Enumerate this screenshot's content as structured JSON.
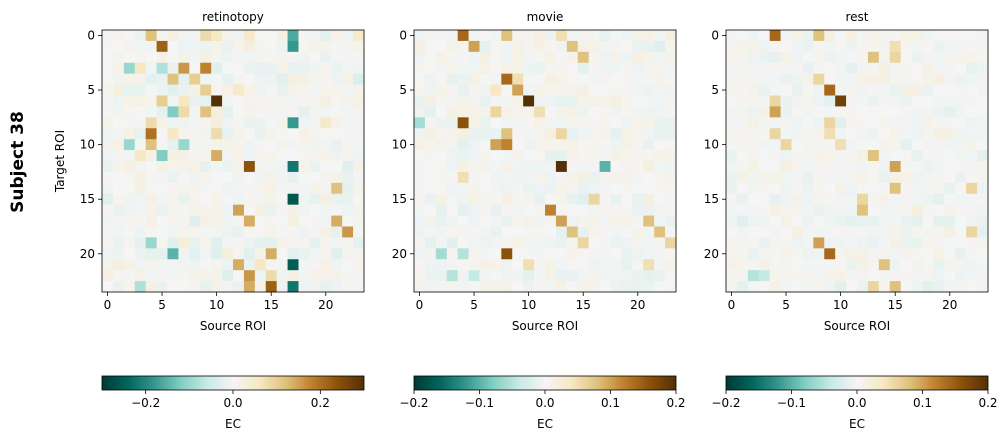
{
  "figure": {
    "row_label": "Subject 38"
  },
  "chart_data": [
    {
      "type": "heatmap",
      "title": "retinotopy",
      "xlabel": "Source ROI",
      "ylabel": "Target ROI",
      "size": 24,
      "xticks": [
        0,
        5,
        10,
        15,
        20
      ],
      "yticks": [
        0,
        5,
        10,
        15,
        20
      ],
      "colormap": "BrBG_r",
      "colorbar": {
        "label": "EC",
        "range": [
          -0.3,
          0.3
        ],
        "ticks": [
          -0.2,
          0.0,
          0.2
        ],
        "tick_labels": [
          "−0.2",
          "0.0",
          "0.2"
        ]
      },
      "grid": false,
      "seed": 38,
      "noise_scale": 0.075,
      "notable_cells": [
        [
          0,
          4,
          0.12
        ],
        [
          0,
          9,
          0.08
        ],
        [
          0,
          10,
          0.06
        ],
        [
          0,
          13,
          0.05
        ],
        [
          0,
          17,
          -0.16
        ],
        [
          0,
          23,
          0.05
        ],
        [
          1,
          5,
          0.22
        ],
        [
          1,
          17,
          -0.18
        ],
        [
          3,
          2,
          -0.1
        ],
        [
          3,
          3,
          0.06
        ],
        [
          3,
          5,
          -0.08
        ],
        [
          3,
          7,
          0.16
        ],
        [
          3,
          9,
          0.18
        ],
        [
          4,
          6,
          0.12
        ],
        [
          4,
          8,
          0.1
        ],
        [
          5,
          9,
          0.1
        ],
        [
          5,
          12,
          0.05
        ],
        [
          6,
          5,
          0.1
        ],
        [
          6,
          7,
          0.06
        ],
        [
          6,
          10,
          0.3
        ],
        [
          7,
          6,
          -0.12
        ],
        [
          7,
          7,
          0.08
        ],
        [
          7,
          9,
          0.12
        ],
        [
          8,
          4,
          0.08
        ],
        [
          8,
          17,
          -0.18
        ],
        [
          8,
          20,
          0.05
        ],
        [
          9,
          4,
          0.2
        ],
        [
          9,
          6,
          0.06
        ],
        [
          9,
          10,
          0.08
        ],
        [
          10,
          2,
          -0.1
        ],
        [
          10,
          4,
          0.12
        ],
        [
          10,
          7,
          -0.1
        ],
        [
          11,
          3,
          0.06
        ],
        [
          11,
          5,
          -0.12
        ],
        [
          11,
          10,
          0.14
        ],
        [
          12,
          13,
          0.24
        ],
        [
          12,
          17,
          -0.22
        ],
        [
          14,
          21,
          0.12
        ],
        [
          15,
          17,
          -0.26
        ],
        [
          16,
          12,
          0.15
        ],
        [
          17,
          13,
          0.14
        ],
        [
          17,
          21,
          0.14
        ],
        [
          18,
          22,
          0.16
        ],
        [
          19,
          4,
          -0.1
        ],
        [
          20,
          6,
          -0.15
        ],
        [
          20,
          15,
          0.14
        ],
        [
          21,
          12,
          0.14
        ],
        [
          21,
          14,
          0.06
        ],
        [
          21,
          17,
          -0.25
        ],
        [
          22,
          13,
          0.16
        ],
        [
          22,
          15,
          0.08
        ],
        [
          23,
          13,
          0.14
        ],
        [
          23,
          15,
          0.22
        ],
        [
          23,
          17,
          -0.22
        ],
        [
          23,
          3,
          -0.08
        ]
      ]
    },
    {
      "type": "heatmap",
      "title": "movie",
      "xlabel": "Source ROI",
      "ylabel": "",
      "size": 24,
      "xticks": [
        0,
        5,
        10,
        15,
        20
      ],
      "yticks": [
        0,
        5,
        10,
        15,
        20
      ],
      "colormap": "BrBG_r",
      "colorbar": {
        "label": "EC",
        "range": [
          -0.2,
          0.2
        ],
        "ticks": [
          -0.2,
          -0.1,
          0.0,
          0.1,
          0.2
        ],
        "tick_labels": [
          "−0.2",
          "−0.1",
          "0.0",
          "0.1",
          "0.2"
        ]
      },
      "grid": false,
      "seed": 7,
      "noise_scale": 0.045,
      "notable_cells": [
        [
          0,
          4,
          0.14
        ],
        [
          0,
          8,
          0.08
        ],
        [
          0,
          13,
          0.05
        ],
        [
          1,
          5,
          0.1
        ],
        [
          1,
          14,
          0.08
        ],
        [
          2,
          15,
          0.08
        ],
        [
          4,
          8,
          0.14
        ],
        [
          4,
          9,
          0.05
        ],
        [
          5,
          9,
          0.1
        ],
        [
          5,
          7,
          0.04
        ],
        [
          6,
          10,
          0.2
        ],
        [
          7,
          7,
          0.06
        ],
        [
          7,
          11,
          0.05
        ],
        [
          8,
          4,
          0.16
        ],
        [
          8,
          0,
          -0.06
        ],
        [
          9,
          8,
          0.08
        ],
        [
          9,
          13,
          0.06
        ],
        [
          10,
          7,
          0.1
        ],
        [
          10,
          8,
          0.12
        ],
        [
          12,
          13,
          0.2
        ],
        [
          12,
          17,
          -0.1
        ],
        [
          13,
          4,
          0.05
        ],
        [
          15,
          16,
          0.06
        ],
        [
          16,
          12,
          0.12
        ],
        [
          17,
          13,
          0.1
        ],
        [
          17,
          21,
          0.08
        ],
        [
          18,
          14,
          0.08
        ],
        [
          18,
          22,
          0.08
        ],
        [
          19,
          15,
          0.06
        ],
        [
          19,
          23,
          0.06
        ],
        [
          20,
          8,
          0.16
        ],
        [
          20,
          2,
          -0.06
        ],
        [
          20,
          4,
          -0.05
        ],
        [
          21,
          10,
          0.05
        ],
        [
          21,
          21,
          0.05
        ],
        [
          22,
          3,
          -0.05
        ],
        [
          22,
          5,
          -0.04
        ]
      ]
    },
    {
      "type": "heatmap",
      "title": "rest",
      "xlabel": "Source ROI",
      "ylabel": "",
      "size": 24,
      "xticks": [
        0,
        5,
        10,
        15,
        20
      ],
      "yticks": [
        0,
        5,
        10,
        15,
        20
      ],
      "colormap": "BrBG_r",
      "colorbar": {
        "label": "EC",
        "range": [
          -0.2,
          0.2
        ],
        "ticks": [
          -0.2,
          -0.1,
          0.0,
          0.1,
          0.2
        ],
        "tick_labels": [
          "−0.2",
          "−0.1",
          "0.0",
          "0.1",
          "0.2"
        ]
      },
      "grid": false,
      "seed": 91,
      "noise_scale": 0.04,
      "notable_cells": [
        [
          0,
          4,
          0.14
        ],
        [
          0,
          8,
          0.08
        ],
        [
          1,
          15,
          0.05
        ],
        [
          2,
          13,
          0.08
        ],
        [
          2,
          15,
          0.06
        ],
        [
          4,
          8,
          0.06
        ],
        [
          5,
          9,
          0.14
        ],
        [
          6,
          10,
          0.18
        ],
        [
          6,
          4,
          0.06
        ],
        [
          7,
          4,
          0.1
        ],
        [
          8,
          9,
          0.06
        ],
        [
          9,
          4,
          0.06
        ],
        [
          9,
          9,
          0.05
        ],
        [
          10,
          5,
          0.06
        ],
        [
          10,
          10,
          0.05
        ],
        [
          11,
          13,
          0.08
        ],
        [
          12,
          15,
          0.1
        ],
        [
          14,
          15,
          0.08
        ],
        [
          14,
          22,
          0.06
        ],
        [
          15,
          12,
          0.06
        ],
        [
          16,
          12,
          0.08
        ],
        [
          18,
          22,
          0.06
        ],
        [
          19,
          8,
          0.1
        ],
        [
          20,
          9,
          0.14
        ],
        [
          21,
          14,
          0.08
        ],
        [
          22,
          2,
          -0.05
        ],
        [
          22,
          3,
          -0.04
        ],
        [
          23,
          13,
          0.06
        ],
        [
          23,
          15,
          0.08
        ]
      ]
    }
  ]
}
